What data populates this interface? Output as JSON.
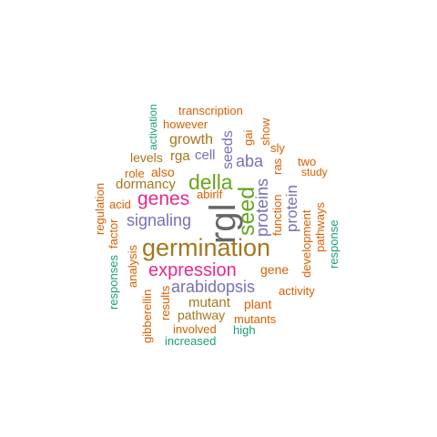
{
  "colors": {
    "teal": "#1b9e77",
    "orange": "#d95f02",
    "purple": "#7570b3",
    "magenta": "#e7298a",
    "green": "#66a61e",
    "brown": "#a6761d",
    "gray": "#666666"
  },
  "words": [
    {
      "id": "rgl",
      "text": "rgl",
      "weight": 10
    },
    {
      "id": "germination",
      "text": "germination",
      "weight": 9
    },
    {
      "id": "expression",
      "text": "expression",
      "weight": 7
    },
    {
      "id": "della",
      "text": "della",
      "weight": 7
    },
    {
      "id": "seed",
      "text": "seed",
      "weight": 7
    },
    {
      "id": "genes",
      "text": "genes",
      "weight": 6
    },
    {
      "id": "signaling",
      "text": "signaling",
      "weight": 6
    },
    {
      "id": "arabidopsis",
      "text": "arabidopsis",
      "weight": 6
    },
    {
      "id": "aba",
      "text": "aba",
      "weight": 6
    },
    {
      "id": "proteins",
      "text": "proteins",
      "weight": 6
    },
    {
      "id": "protein",
      "text": "protein",
      "weight": 5
    },
    {
      "id": "seeds",
      "text": "seeds",
      "weight": 5
    },
    {
      "id": "growth",
      "text": "growth",
      "weight": 5
    },
    {
      "id": "dormancy",
      "text": "dormancy",
      "weight": 5
    },
    {
      "id": "mutant",
      "text": "mutant",
      "weight": 5
    },
    {
      "id": "gene",
      "text": "gene",
      "weight": 4
    },
    {
      "id": "plant",
      "text": "plant",
      "weight": 4
    },
    {
      "id": "cell",
      "text": "cell",
      "weight": 4
    },
    {
      "id": "rga",
      "text": "rga",
      "weight": 4
    },
    {
      "id": "levels",
      "text": "levels",
      "weight": 4
    },
    {
      "id": "pathway",
      "text": "pathway",
      "weight": 4
    },
    {
      "id": "mutants",
      "text": "mutants",
      "weight": 4
    },
    {
      "id": "development",
      "text": "development",
      "weight": 4
    },
    {
      "id": "function",
      "text": "function",
      "weight": 4
    },
    {
      "id": "ras",
      "text": "ras",
      "weight": 4
    },
    {
      "id": "abirlf",
      "text": "abirlf",
      "weight": 3
    },
    {
      "id": "transcription",
      "text": "transcription",
      "weight": 3
    },
    {
      "id": "however",
      "text": "however",
      "weight": 3
    },
    {
      "id": "activation",
      "text": "activation",
      "weight": 3
    },
    {
      "id": "gai",
      "text": "gai",
      "weight": 3
    },
    {
      "id": "show",
      "text": "show",
      "weight": 3
    },
    {
      "id": "sly",
      "text": "sly",
      "weight": 3
    },
    {
      "id": "two",
      "text": "two",
      "weight": 3
    },
    {
      "id": "study",
      "text": "study",
      "weight": 3
    },
    {
      "id": "role",
      "text": "role",
      "weight": 3
    },
    {
      "id": "also",
      "text": "also",
      "weight": 3
    },
    {
      "id": "acid",
      "text": "acid",
      "weight": 3
    },
    {
      "id": "regulation",
      "text": "regulation",
      "weight": 3
    },
    {
      "id": "factor",
      "text": "factor",
      "weight": 3
    },
    {
      "id": "responses",
      "text": "responses",
      "weight": 3
    },
    {
      "id": "analysis",
      "text": "analysis",
      "weight": 3
    },
    {
      "id": "gibberellin",
      "text": "gibberellin",
      "weight": 3
    },
    {
      "id": "results",
      "text": "results",
      "weight": 3
    },
    {
      "id": "involved",
      "text": "involved",
      "weight": 3
    },
    {
      "id": "increased",
      "text": "increased",
      "weight": 3
    },
    {
      "id": "high",
      "text": "high",
      "weight": 3
    },
    {
      "id": "activity",
      "text": "activity",
      "weight": 3
    },
    {
      "id": "pathways",
      "text": "pathways",
      "weight": 3
    },
    {
      "id": "response",
      "text": "response",
      "weight": 3
    }
  ]
}
